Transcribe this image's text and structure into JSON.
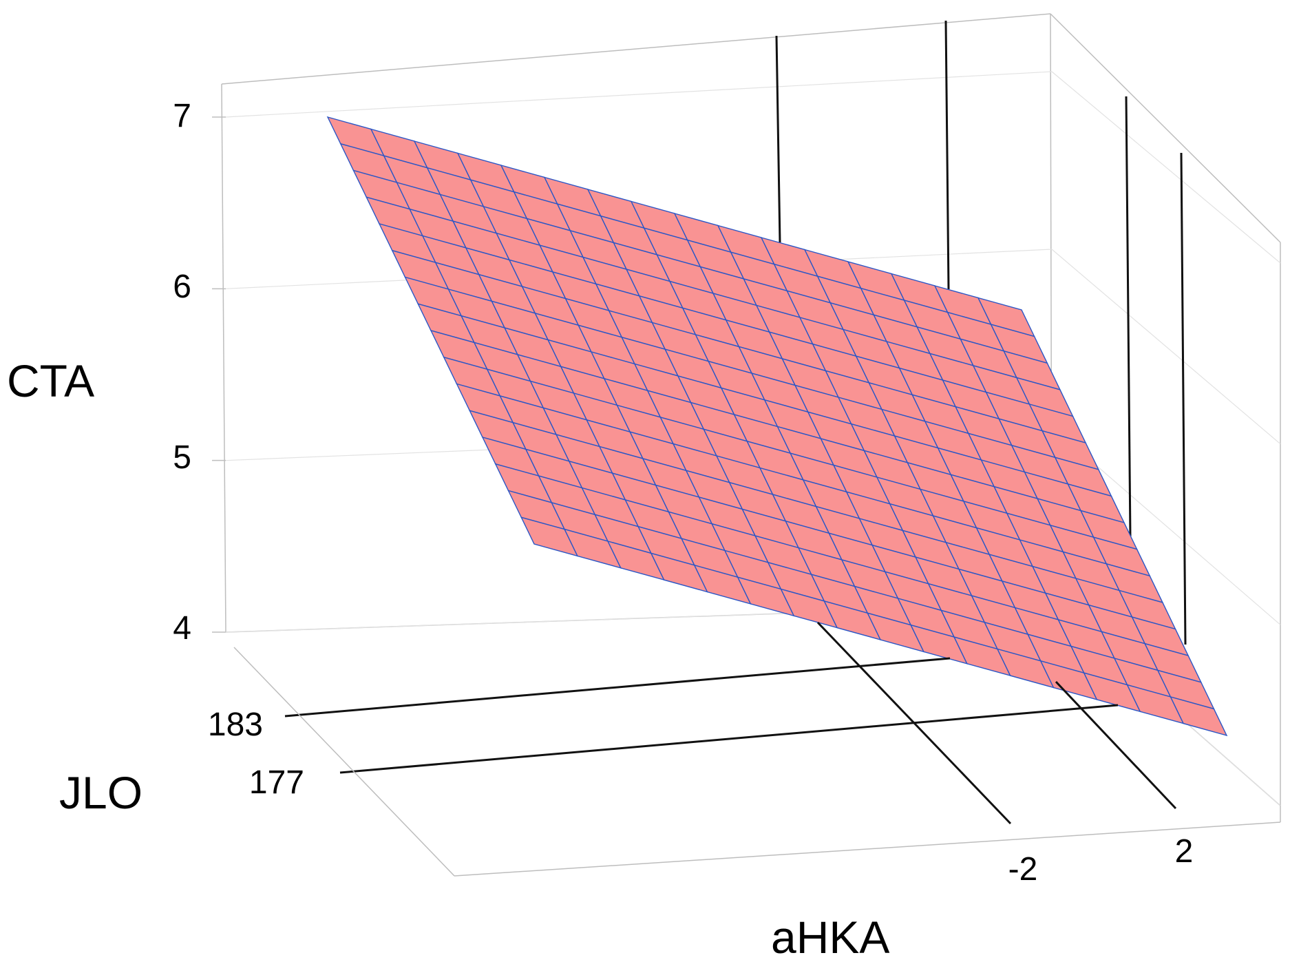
{
  "chart_data": {
    "type": "surface",
    "zlabel": "CTA",
    "ylabel": "JLO",
    "xlabel": "aHKA",
    "z_ticks": [
      4,
      5,
      6,
      7
    ],
    "y_ticks": [
      183,
      177
    ],
    "x_ticks": [
      -2,
      2
    ],
    "zlim": [
      4,
      7
    ],
    "surface": {
      "description": "planar fitted surface",
      "corners": [
        {
          "aHKA": -2,
          "JLO": 183,
          "CTA": 7.0
        },
        {
          "aHKA": 2,
          "JLO": 183,
          "CTA": 5.8
        },
        {
          "aHKA": -2,
          "JLO": 177,
          "CTA": 4.5
        },
        {
          "aHKA": 2,
          "JLO": 177,
          "CTA": 3.3
        }
      ],
      "grid_divisions": 16,
      "color": "#f99393",
      "edge_color": "#2a56c6"
    },
    "grid": true
  }
}
